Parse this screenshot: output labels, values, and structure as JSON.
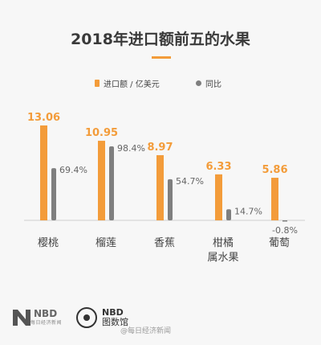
{
  "chart_data": {
    "type": "bar",
    "title": "2018年进口额前五的水果",
    "categories": [
      "樱桃",
      "榴莲",
      "香蕉",
      "柑橘\n属水果",
      "葡萄"
    ],
    "series": [
      {
        "name": "进口额 / 亿美元",
        "values": [
          13.06,
          10.95,
          8.97,
          6.33,
          5.86
        ],
        "labels": [
          "13.06",
          "10.95",
          "8.97",
          "6.33",
          "5.86"
        ],
        "color": "#f39c3a"
      },
      {
        "name": "同比",
        "values": [
          69.4,
          98.4,
          54.7,
          14.7,
          -0.8
        ],
        "labels": [
          "69.4%",
          "98.4%",
          "54.7%",
          "14.7%",
          "-0.8%"
        ],
        "color": "#7f7f7f"
      }
    ],
    "legend": "top",
    "grid": false
  },
  "footer": {
    "nbd_logo": "NBD",
    "nbd_sub": "每日经济新闻",
    "brand_name": "NBD",
    "brand_sub": "图数馆",
    "watermark": "@每日经济新闻"
  },
  "colors": {
    "accent": "#f39c3a",
    "gray": "#7f7f7f",
    "background": "#f7f7f7"
  }
}
